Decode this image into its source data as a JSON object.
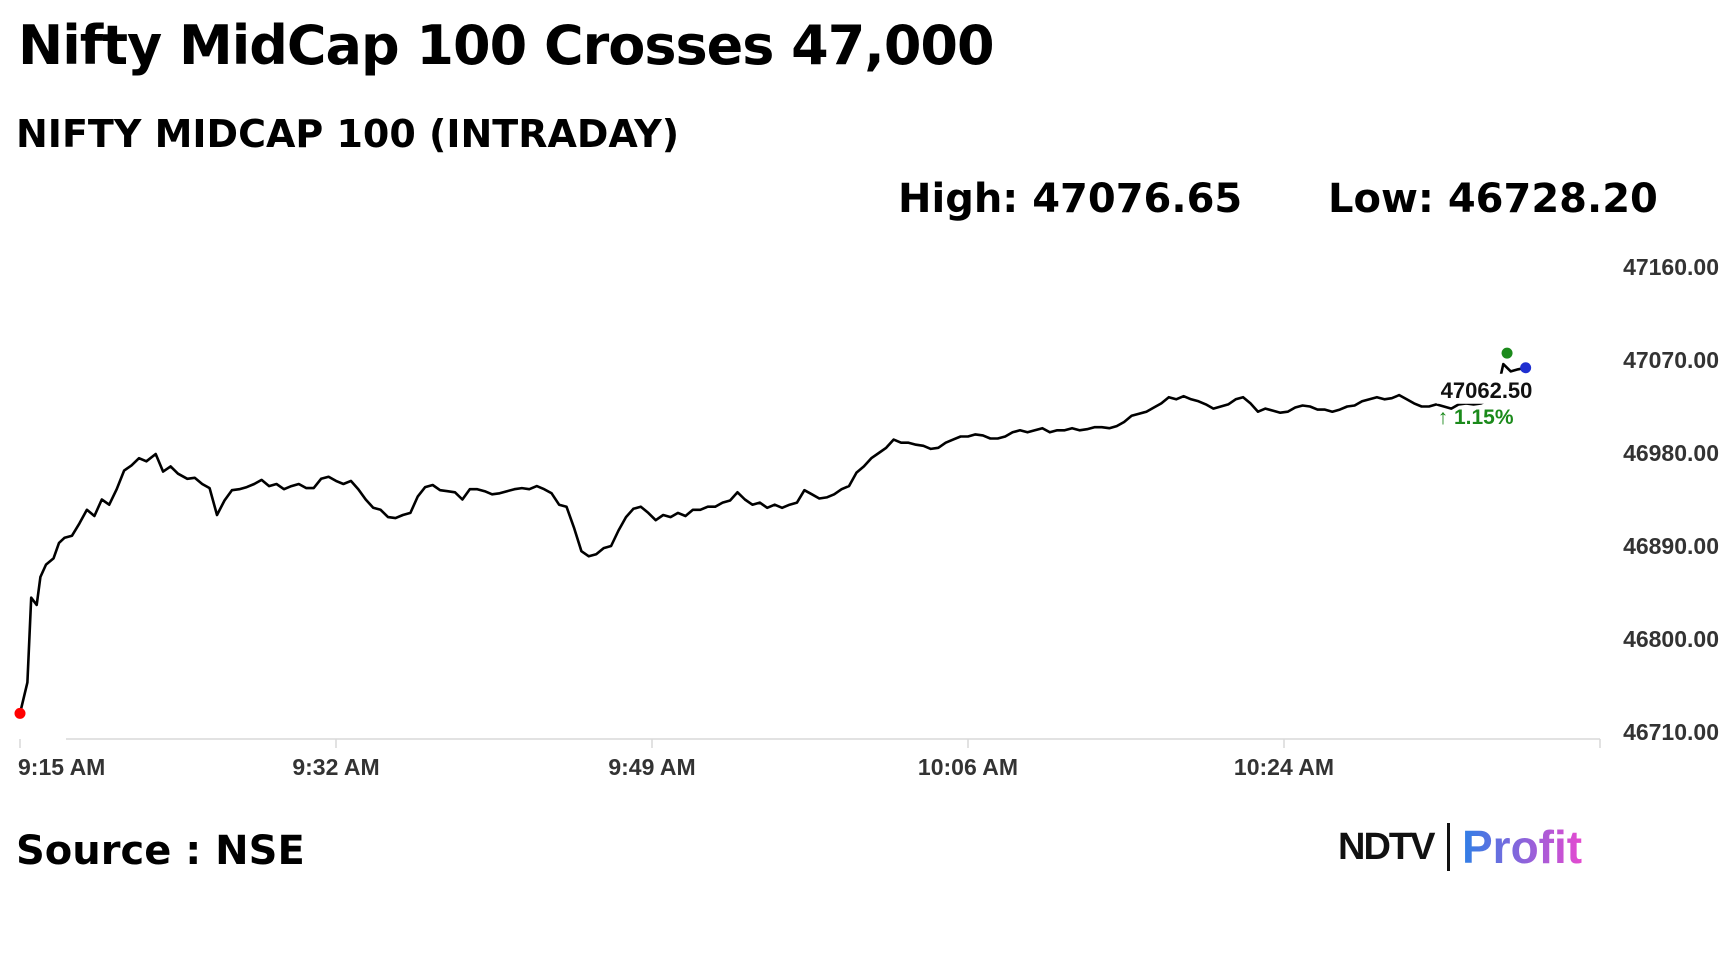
{
  "headline": "Nifty MidCap 100 Crosses 47,000",
  "subtitle": "NIFTY MIDCAP 100 (INTRADAY)",
  "stats": {
    "high": "High: 47076.65",
    "low": "Low: 46728.20"
  },
  "source": "Source : NSE",
  "logo": {
    "brand": "NDTV",
    "product": "Profit"
  },
  "colors": {
    "line": "#000000",
    "axis": "#d9d9d9",
    "start_dot": "#ff0000",
    "high_dot": "#1b8a1b",
    "end_dot": "#1f2fd0",
    "change_text": "#1b8a1b",
    "profit_gradient_start": "#2f7fe6",
    "profit_gradient_end": "#e54ad0"
  },
  "chart_data": {
    "type": "line",
    "title": "NIFTY MIDCAP 100 (INTRADAY)",
    "xlabel": "",
    "ylabel": "",
    "ylim": [
      46710,
      47160
    ],
    "y_ticks": [
      47160,
      47070,
      46980,
      46890,
      46800,
      46710
    ],
    "y_tick_labels": [
      "47160.00",
      "47070.00",
      "46980.00",
      "46890.00",
      "46800.00",
      "46710.00"
    ],
    "x_ticks": [
      "9:15 AM",
      "9:32 AM",
      "9:49 AM",
      "10:06 AM",
      "10:24 AM"
    ],
    "x_tick_minutes": [
      0,
      17,
      34,
      51,
      68
    ],
    "xlim_minutes": [
      0,
      85
    ],
    "last_value_label": "47062.50",
    "change_label": "↑ 1.15%",
    "series": [
      {
        "points": [
          [
            0,
            46728
          ],
          [
            0.4,
            46758
          ],
          [
            0.6,
            46840
          ],
          [
            0.9,
            46833
          ],
          [
            1.1,
            46860
          ],
          [
            1.4,
            46872
          ],
          [
            1.8,
            46878
          ],
          [
            2.1,
            46893
          ],
          [
            2.4,
            46898
          ],
          [
            2.8,
            46900
          ],
          [
            3.2,
            46912
          ],
          [
            3.6,
            46925
          ],
          [
            4.0,
            46919
          ],
          [
            4.4,
            46935
          ],
          [
            4.8,
            46930
          ],
          [
            5.2,
            46945
          ],
          [
            5.6,
            46963
          ],
          [
            6.0,
            46968
          ],
          [
            6.4,
            46975
          ],
          [
            6.8,
            46972
          ],
          [
            7.3,
            46979
          ],
          [
            7.7,
            46962
          ],
          [
            8.1,
            46967
          ],
          [
            8.5,
            46960
          ],
          [
            9.0,
            46955
          ],
          [
            9.4,
            46956
          ],
          [
            9.8,
            46950
          ],
          [
            10.2,
            46946
          ],
          [
            10.6,
            46920
          ],
          [
            11.0,
            46934
          ],
          [
            11.4,
            46944
          ],
          [
            11.8,
            46945
          ],
          [
            12.2,
            46947
          ],
          [
            12.6,
            46950
          ],
          [
            13.0,
            46954
          ],
          [
            13.4,
            46948
          ],
          [
            13.8,
            46950
          ],
          [
            14.2,
            46945
          ],
          [
            14.6,
            46948
          ],
          [
            15.0,
            46950
          ],
          [
            15.4,
            46946
          ],
          [
            15.8,
            46946
          ],
          [
            16.2,
            46955
          ],
          [
            16.6,
            46957
          ],
          [
            17.0,
            46953
          ],
          [
            17.4,
            46950
          ],
          [
            17.8,
            46953
          ],
          [
            18.2,
            46945
          ],
          [
            18.6,
            46935
          ],
          [
            19.0,
            46927
          ],
          [
            19.4,
            46925
          ],
          [
            19.8,
            46918
          ],
          [
            20.2,
            46917
          ],
          [
            20.6,
            46920
          ],
          [
            21.0,
            46922
          ],
          [
            21.4,
            46938
          ],
          [
            21.8,
            46947
          ],
          [
            22.2,
            46949
          ],
          [
            22.6,
            46944
          ],
          [
            23.0,
            46943
          ],
          [
            23.4,
            46942
          ],
          [
            23.8,
            46935
          ],
          [
            24.2,
            46945
          ],
          [
            24.6,
            46945
          ],
          [
            25.0,
            46943
          ],
          [
            25.4,
            46940
          ],
          [
            25.8,
            46941
          ],
          [
            26.2,
            46943
          ],
          [
            26.6,
            46945
          ],
          [
            27.0,
            46946
          ],
          [
            27.4,
            46945
          ],
          [
            27.8,
            46948
          ],
          [
            28.2,
            46945
          ],
          [
            28.6,
            46941
          ],
          [
            29.0,
            46930
          ],
          [
            29.4,
            46928
          ],
          [
            29.8,
            46908
          ],
          [
            30.2,
            46885
          ],
          [
            30.6,
            46880
          ],
          [
            31.0,
            46882
          ],
          [
            31.4,
            46888
          ],
          [
            31.8,
            46890
          ],
          [
            32.2,
            46905
          ],
          [
            32.6,
            46918
          ],
          [
            33.0,
            46926
          ],
          [
            33.4,
            46928
          ],
          [
            33.8,
            46922
          ],
          [
            34.2,
            46915
          ],
          [
            34.6,
            46920
          ],
          [
            35.0,
            46918
          ],
          [
            35.4,
            46922
          ],
          [
            35.8,
            46919
          ],
          [
            36.2,
            46925
          ],
          [
            36.6,
            46925
          ],
          [
            37.0,
            46928
          ],
          [
            37.4,
            46928
          ],
          [
            37.8,
            46932
          ],
          [
            38.2,
            46934
          ],
          [
            38.6,
            46942
          ],
          [
            39.0,
            46935
          ],
          [
            39.4,
            46930
          ],
          [
            39.8,
            46932
          ],
          [
            40.2,
            46927
          ],
          [
            40.6,
            46930
          ],
          [
            41.0,
            46927
          ],
          [
            41.4,
            46930
          ],
          [
            41.8,
            46932
          ],
          [
            42.2,
            46944
          ],
          [
            42.6,
            46940
          ],
          [
            43.0,
            46936
          ],
          [
            43.4,
            46937
          ],
          [
            43.8,
            46940
          ],
          [
            44.2,
            46945
          ],
          [
            44.6,
            46948
          ],
          [
            45.0,
            46961
          ],
          [
            45.4,
            46967
          ],
          [
            45.8,
            46975
          ],
          [
            46.2,
            46980
          ],
          [
            46.6,
            46985
          ],
          [
            47.0,
            46993
          ],
          [
            47.4,
            46990
          ],
          [
            47.8,
            46990
          ],
          [
            48.2,
            46988
          ],
          [
            48.6,
            46987
          ],
          [
            49.0,
            46984
          ],
          [
            49.4,
            46985
          ],
          [
            49.8,
            46990
          ],
          [
            50.2,
            46993
          ],
          [
            50.6,
            46996
          ],
          [
            51.0,
            46996
          ],
          [
            51.4,
            46998
          ],
          [
            51.8,
            46997
          ],
          [
            52.2,
            46994
          ],
          [
            52.6,
            46994
          ],
          [
            53.0,
            46996
          ],
          [
            53.4,
            47000
          ],
          [
            53.8,
            47002
          ],
          [
            54.2,
            47000
          ],
          [
            54.6,
            47002
          ],
          [
            55.0,
            47004
          ],
          [
            55.4,
            47000
          ],
          [
            55.8,
            47002
          ],
          [
            56.2,
            47002
          ],
          [
            56.6,
            47004
          ],
          [
            57.0,
            47002
          ],
          [
            57.4,
            47003
          ],
          [
            57.8,
            47005
          ],
          [
            58.2,
            47005
          ],
          [
            58.6,
            47004
          ],
          [
            59.0,
            47006
          ],
          [
            59.4,
            47010
          ],
          [
            59.8,
            47016
          ],
          [
            60.2,
            47018
          ],
          [
            60.6,
            47020
          ],
          [
            61.0,
            47024
          ],
          [
            61.4,
            47028
          ],
          [
            61.8,
            47034
          ],
          [
            62.2,
            47032
          ],
          [
            62.6,
            47035
          ],
          [
            63.0,
            47032
          ],
          [
            63.4,
            47030
          ],
          [
            63.8,
            47027
          ],
          [
            64.2,
            47023
          ],
          [
            64.6,
            47025
          ],
          [
            65.0,
            47027
          ],
          [
            65.4,
            47032
          ],
          [
            65.8,
            47034
          ],
          [
            66.2,
            47028
          ],
          [
            66.6,
            47020
          ],
          [
            67.0,
            47023
          ],
          [
            67.4,
            47021
          ],
          [
            67.8,
            47019
          ],
          [
            68.2,
            47020
          ],
          [
            68.6,
            47024
          ],
          [
            69.0,
            47026
          ],
          [
            69.4,
            47025
          ],
          [
            69.8,
            47022
          ],
          [
            70.2,
            47022
          ],
          [
            70.6,
            47020
          ],
          [
            71.0,
            47022
          ],
          [
            71.4,
            47025
          ],
          [
            71.8,
            47026
          ],
          [
            72.2,
            47030
          ],
          [
            72.6,
            47032
          ],
          [
            73.0,
            47034
          ],
          [
            73.4,
            47032
          ],
          [
            73.8,
            47033
          ],
          [
            74.2,
            47036
          ],
          [
            74.6,
            47032
          ],
          [
            75.0,
            47028
          ],
          [
            75.4,
            47025
          ],
          [
            75.8,
            47025
          ],
          [
            76.2,
            47027
          ],
          [
            76.6,
            47025
          ],
          [
            77.0,
            47023
          ],
          [
            77.4,
            47027
          ],
          [
            77.8,
            47028
          ],
          [
            78.2,
            47027
          ],
          [
            78.6,
            47028
          ],
          [
            79.0,
            47031
          ],
          [
            79.4,
            47034
          ],
          [
            79.8,
            47066
          ],
          [
            80.2,
            47059
          ],
          [
            80.6,
            47061
          ],
          [
            81.0,
            47062.5
          ]
        ]
      }
    ],
    "markers": [
      {
        "role": "start",
        "x": 0,
        "y": 46728
      },
      {
        "role": "high",
        "x": 80.0,
        "y": 47076.65
      },
      {
        "role": "end",
        "x": 81.0,
        "y": 47062.5
      }
    ]
  }
}
